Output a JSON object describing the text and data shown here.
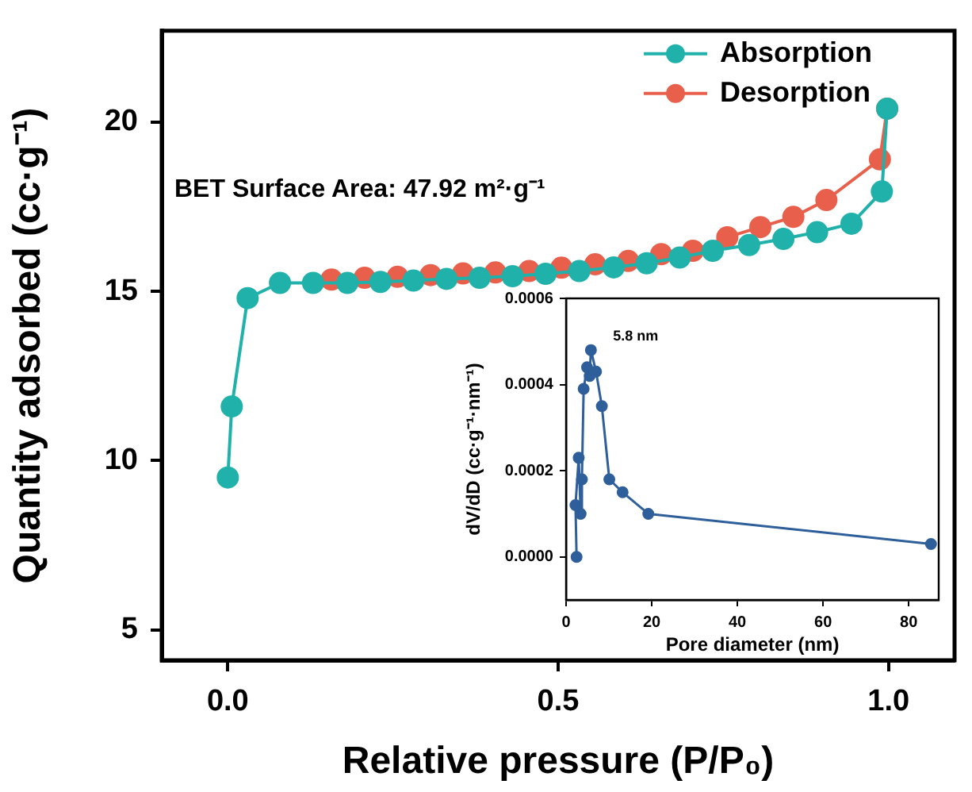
{
  "chart_data": [
    {
      "type": "line",
      "xlabel": "Relative pressure (P/P₀)",
      "ylabel": "Quantity adsorbed (cc·g⁻¹)",
      "xlim": [
        -0.1,
        1.1
      ],
      "ylim": [
        4.1,
        22.7
      ],
      "xticks": [
        {
          "value": 0,
          "label": "0.0"
        },
        {
          "value": 0.5,
          "label": "0.5"
        },
        {
          "value": 1,
          "label": "1.0"
        }
      ],
      "yticks": [
        5,
        10,
        15,
        20
      ],
      "grid": false,
      "legend": "top right",
      "marker": "circle",
      "line_style": "solid",
      "annotations": [
        "BET Surface Area: 47.92 m²·g⁻¹"
      ],
      "series": [
        {
          "name": "Absorption",
          "color": "#20b2aa",
          "x": [
            0.0,
            0.006,
            0.03,
            0.079,
            0.129,
            0.181,
            0.231,
            0.281,
            0.331,
            0.381,
            0.431,
            0.481,
            0.532,
            0.584,
            0.634,
            0.684,
            0.734,
            0.789,
            0.841,
            0.892,
            0.944,
            0.99,
            0.998
          ],
          "values": [
            9.5,
            11.6,
            14.8,
            15.25,
            15.25,
            15.25,
            15.28,
            15.32,
            15.37,
            15.4,
            15.45,
            15.52,
            15.6,
            15.71,
            15.83,
            16.0,
            16.2,
            16.37,
            16.55,
            16.75,
            17.0,
            17.95,
            20.4
          ]
        },
        {
          "name": "Desorption",
          "color": "#e8604c",
          "x": [
            0.998,
            0.987,
            0.906,
            0.856,
            0.806,
            0.756,
            0.704,
            0.656,
            0.606,
            0.556,
            0.505,
            0.456,
            0.405,
            0.356,
            0.307,
            0.257,
            0.207,
            0.157
          ],
          "values": [
            20.4,
            18.9,
            17.7,
            17.2,
            16.9,
            16.6,
            16.2,
            16.1,
            15.9,
            15.8,
            15.7,
            15.6,
            15.56,
            15.53,
            15.48,
            15.43,
            15.4,
            15.35
          ]
        }
      ]
    },
    {
      "type": "line",
      "xlabel": "Pore diameter (nm)",
      "ylabel": "dV/dD (cc·g⁻¹·nm⁻¹)",
      "xlim": [
        0,
        87
      ],
      "ylim": [
        -0.0001,
        0.0006
      ],
      "xticks": [
        0,
        20,
        40,
        60,
        80
      ],
      "yticks": [
        {
          "value": 0,
          "label": "0.0000"
        },
        {
          "value": 0.0002,
          "label": "0.0002"
        },
        {
          "value": 0.0004,
          "label": "0.0004"
        },
        {
          "value": 0.0006,
          "label": "0.0006"
        }
      ],
      "grid": false,
      "marker": "circle",
      "line_style": "solid",
      "annotations": [
        {
          "text": "5.8 nm",
          "x": 5.8,
          "y": 0.00048
        }
      ],
      "series": [
        {
          "color": "#2e5f9a",
          "x": [
            2.45,
            2.2,
            2.95,
            3.4,
            3.7,
            4.1,
            4.9,
            5.5,
            5.8,
            7.0,
            8.35,
            10.1,
            13.2,
            19.2,
            85.2
          ],
          "values": [
            0,
            0.00012,
            0.00023,
            0.0001,
            0.00018,
            0.00039,
            0.00044,
            0.00042,
            0.00048,
            0.00043,
            0.00035,
            0.00018,
            0.00015,
            0.0001,
            3e-05
          ]
        }
      ]
    }
  ]
}
